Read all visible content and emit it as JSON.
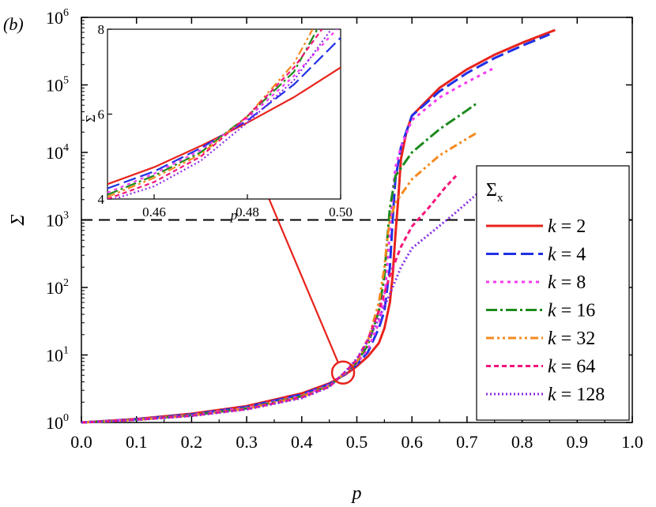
{
  "panel_label": "(b)",
  "chart_data": [
    {
      "type": "line",
      "xlabel": "p",
      "ylabel": "Σ",
      "xlim": [
        0.0,
        1.0
      ],
      "ylim": [
        1,
        1000000
      ],
      "yscale": "log",
      "x_ticks": [
        "0.0",
        "0.1",
        "0.2",
        "0.3",
        "0.4",
        "0.5",
        "0.6",
        "0.7",
        "0.8",
        "0.9",
        "1.0"
      ],
      "y_tick_base": "10",
      "y_tick_exponents": [
        "0",
        "1",
        "2",
        "3",
        "4",
        "5",
        "6"
      ],
      "threshold_line": {
        "y": 1000,
        "style": "dashed",
        "color": "#000000"
      },
      "legend": {
        "title": "Σ",
        "title_sub": "x",
        "placement": "right"
      },
      "series": [
        {
          "name": "k = 2",
          "k": "2",
          "color": "#e8231c",
          "dash": "",
          "points": [
            [
              0.0,
              1.0
            ],
            [
              0.1,
              1.13
            ],
            [
              0.2,
              1.35
            ],
            [
              0.3,
              1.75
            ],
            [
              0.4,
              2.7
            ],
            [
              0.45,
              3.8
            ],
            [
              0.48,
              5.2
            ],
            [
              0.5,
              6.8
            ],
            [
              0.52,
              9.5
            ],
            [
              0.54,
              15
            ],
            [
              0.55,
              25
            ],
            [
              0.56,
              60
            ],
            [
              0.565,
              150
            ],
            [
              0.57,
              600
            ],
            [
              0.575,
              2000
            ],
            [
              0.58,
              8000
            ],
            [
              0.59,
              20000
            ],
            [
              0.6,
              35000
            ],
            [
              0.65,
              90000
            ],
            [
              0.7,
              170000
            ],
            [
              0.75,
              280000
            ],
            [
              0.8,
              420000
            ],
            [
              0.86,
              650000
            ]
          ]
        },
        {
          "name": "k = 4",
          "k": "4",
          "color": "#2130e6",
          "dash": "16,6",
          "points": [
            [
              0.0,
              1.0
            ],
            [
              0.1,
              1.12
            ],
            [
              0.2,
              1.32
            ],
            [
              0.3,
              1.7
            ],
            [
              0.4,
              2.6
            ],
            [
              0.45,
              3.7
            ],
            [
              0.48,
              5.3
            ],
            [
              0.5,
              7.2
            ],
            [
              0.52,
              11
            ],
            [
              0.54,
              25
            ],
            [
              0.55,
              45
            ],
            [
              0.56,
              200
            ],
            [
              0.565,
              1000
            ],
            [
              0.57,
              4000
            ],
            [
              0.58,
              12000
            ],
            [
              0.6,
              35000
            ],
            [
              0.65,
              80000
            ],
            [
              0.7,
              150000
            ],
            [
              0.75,
              250000
            ],
            [
              0.8,
              380000
            ],
            [
              0.85,
              560000
            ]
          ]
        },
        {
          "name": "k = 8",
          "k": "8",
          "color": "#f53af0",
          "dash": "4,5",
          "points": [
            [
              0.0,
              1.0
            ],
            [
              0.1,
              1.11
            ],
            [
              0.2,
              1.3
            ],
            [
              0.3,
              1.66
            ],
            [
              0.4,
              2.5
            ],
            [
              0.45,
              3.6
            ],
            [
              0.48,
              5.4
            ],
            [
              0.5,
              7.5
            ],
            [
              0.52,
              12
            ],
            [
              0.54,
              30
            ],
            [
              0.55,
              70
            ],
            [
              0.555,
              200
            ],
            [
              0.56,
              700
            ],
            [
              0.565,
              2500
            ],
            [
              0.57,
              6000
            ],
            [
              0.58,
              12000
            ],
            [
              0.6,
              30000
            ],
            [
              0.65,
              65000
            ],
            [
              0.7,
              110000
            ],
            [
              0.75,
              180000
            ]
          ]
        },
        {
          "name": "k = 16",
          "k": "16",
          "color": "#1d8a1d",
          "dash": "14,4,3,4",
          "points": [
            [
              0.0,
              1.0
            ],
            [
              0.1,
              1.1
            ],
            [
              0.2,
              1.28
            ],
            [
              0.3,
              1.62
            ],
            [
              0.4,
              2.45
            ],
            [
              0.45,
              3.5
            ],
            [
              0.48,
              5.5
            ],
            [
              0.5,
              7.8
            ],
            [
              0.52,
              14
            ],
            [
              0.54,
              45
            ],
            [
              0.55,
              150
            ],
            [
              0.555,
              500
            ],
            [
              0.56,
              1500
            ],
            [
              0.57,
              4500
            ],
            [
              0.6,
              10000
            ],
            [
              0.65,
              22000
            ],
            [
              0.7,
              42000
            ],
            [
              0.72,
              55000
            ]
          ]
        },
        {
          "name": "k = 32",
          "k": "32",
          "color": "#f5891e",
          "dash": "10,4,3,4,3,4",
          "points": [
            [
              0.0,
              1.0
            ],
            [
              0.1,
              1.1
            ],
            [
              0.2,
              1.27
            ],
            [
              0.3,
              1.6
            ],
            [
              0.4,
              2.4
            ],
            [
              0.45,
              3.45
            ],
            [
              0.48,
              5.6
            ],
            [
              0.5,
              8.0
            ],
            [
              0.52,
              16
            ],
            [
              0.54,
              60
            ],
            [
              0.55,
              200
            ],
            [
              0.555,
              500
            ],
            [
              0.56,
              1000
            ],
            [
              0.57,
              1800
            ],
            [
              0.6,
              4000
            ],
            [
              0.65,
              9000
            ],
            [
              0.7,
              16000
            ],
            [
              0.72,
              20000
            ]
          ]
        },
        {
          "name": "k = 64",
          "k": "64",
          "color": "#f4157a",
          "dash": "6,4",
          "points": [
            [
              0.0,
              1.0
            ],
            [
              0.1,
              1.1
            ],
            [
              0.2,
              1.26
            ],
            [
              0.3,
              1.58
            ],
            [
              0.4,
              2.35
            ],
            [
              0.45,
              3.4
            ],
            [
              0.48,
              5.7
            ],
            [
              0.5,
              8.5
            ],
            [
              0.52,
              17
            ],
            [
              0.54,
              45
            ],
            [
              0.56,
              150
            ],
            [
              0.58,
              400
            ],
            [
              0.6,
              800
            ],
            [
              0.63,
              1500
            ],
            [
              0.66,
              3000
            ],
            [
              0.68,
              4500
            ]
          ]
        },
        {
          "name": "k = 128",
          "k": "128",
          "color": "#8a2ce6",
          "dash": "2,3",
          "points": [
            [
              0.0,
              1.0
            ],
            [
              0.1,
              1.09
            ],
            [
              0.2,
              1.25
            ],
            [
              0.3,
              1.56
            ],
            [
              0.4,
              2.3
            ],
            [
              0.45,
              3.35
            ],
            [
              0.48,
              5.8
            ],
            [
              0.5,
              8.8
            ],
            [
              0.52,
              16
            ],
            [
              0.54,
              35
            ],
            [
              0.56,
              80
            ],
            [
              0.58,
              200
            ],
            [
              0.6,
              380
            ],
            [
              0.64,
              700
            ],
            [
              0.68,
              1300
            ],
            [
              0.72,
              2500
            ],
            [
              0.75,
              5000
            ]
          ]
        }
      ]
    },
    {
      "type": "line",
      "role": "inset",
      "xlabel": "p",
      "ylabel": "Σ",
      "xlim": [
        0.45,
        0.5
      ],
      "ylim": [
        4,
        8
      ],
      "x_ticks": [
        "0.46",
        "0.48",
        "0.50"
      ],
      "y_ticks": [
        "4",
        "6",
        "8"
      ],
      "series": [
        {
          "name": "k = 2",
          "color": "#e8231c",
          "dash": "",
          "points": [
            [
              0.45,
              4.35
            ],
            [
              0.46,
              4.75
            ],
            [
              0.47,
              5.25
            ],
            [
              0.48,
              5.8
            ],
            [
              0.49,
              6.4
            ],
            [
              0.5,
              7.1
            ]
          ]
        },
        {
          "name": "k = 4",
          "color": "#2130e6",
          "dash": "16,6",
          "points": [
            [
              0.45,
              4.25
            ],
            [
              0.46,
              4.65
            ],
            [
              0.47,
              5.2
            ],
            [
              0.48,
              5.85
            ],
            [
              0.49,
              6.7
            ],
            [
              0.5,
              7.8
            ]
          ]
        },
        {
          "name": "k = 8",
          "color": "#f53af0",
          "dash": "4,5",
          "points": [
            [
              0.45,
              4.15
            ],
            [
              0.46,
              4.6
            ],
            [
              0.47,
              5.15
            ],
            [
              0.48,
              5.9
            ],
            [
              0.49,
              6.9
            ],
            [
              0.5,
              8.1
            ]
          ]
        },
        {
          "name": "k = 16",
          "color": "#1d8a1d",
          "dash": "14,4,3,4",
          "points": [
            [
              0.45,
              4.1
            ],
            [
              0.46,
              4.55
            ],
            [
              0.47,
              5.1
            ],
            [
              0.48,
              5.95
            ],
            [
              0.49,
              7.0
            ],
            [
              0.495,
              8.0
            ]
          ]
        },
        {
          "name": "k = 32",
          "color": "#f5891e",
          "dash": "10,4,3,4,3,4",
          "points": [
            [
              0.45,
              4.05
            ],
            [
              0.46,
              4.5
            ],
            [
              0.47,
              5.05
            ],
            [
              0.48,
              5.95
            ],
            [
              0.49,
              7.2
            ],
            [
              0.494,
              8.0
            ]
          ]
        },
        {
          "name": "k = 64",
          "color": "#f4157a",
          "dash": "6,4",
          "points": [
            [
              0.45,
              4.0
            ],
            [
              0.46,
              4.4
            ],
            [
              0.47,
              5.0
            ],
            [
              0.48,
              5.95
            ],
            [
              0.49,
              7.1
            ],
            [
              0.496,
              8.0
            ]
          ]
        },
        {
          "name": "k = 128",
          "color": "#8a2ce6",
          "dash": "2,3",
          "points": [
            [
              0.45,
              3.95
            ],
            [
              0.46,
              4.3
            ],
            [
              0.47,
              4.9
            ],
            [
              0.48,
              5.8
            ],
            [
              0.49,
              6.8
            ],
            [
              0.498,
              8.0
            ]
          ]
        }
      ]
    }
  ]
}
